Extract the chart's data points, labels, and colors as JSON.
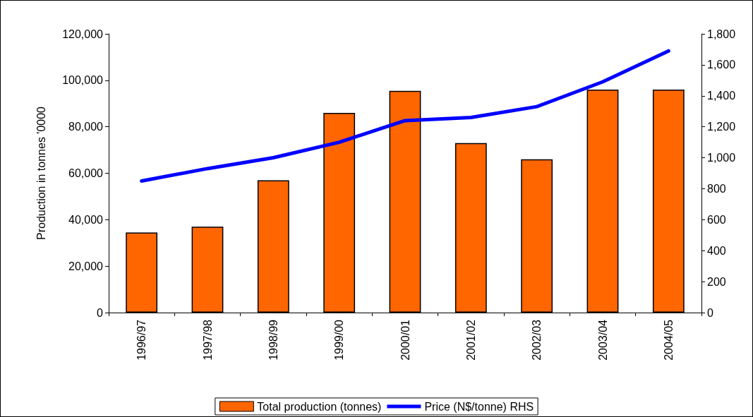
{
  "chart_data": {
    "type": "bar",
    "ylabel": "Production in tonnes '0000",
    "categories": [
      "1996/97",
      "1997/98",
      "1998/99",
      "1999/00",
      "2000/01",
      "2001/02",
      "2002/03",
      "2003/04",
      "2004/05"
    ],
    "series": [
      {
        "name": "Total production (tonnes)",
        "color": "#ff6600",
        "values": [
          34500,
          37000,
          57000,
          86000,
          95500,
          73000,
          66000,
          96000,
          96000
        ]
      },
      {
        "name": "Price (N$/tonne) RHS",
        "type": "line",
        "axis": "y2",
        "color": "#0000ff",
        "values": [
          850,
          930,
          1000,
          1100,
          1240,
          1260,
          1330,
          1490,
          1690
        ]
      }
    ],
    "ylim": [
      0,
      120000
    ],
    "yticks": [
      0,
      {
        "value": 20000,
        "label": "20,000"
      },
      {
        "value": 40000,
        "label": "40,000"
      },
      {
        "value": 60000,
        "label": "60,000"
      },
      {
        "value": 80000,
        "label": "80,000"
      },
      {
        "value": 100000,
        "label": "100,000"
      },
      {
        "value": 120000,
        "label": "120,000"
      }
    ],
    "y2lim": [
      0,
      1800
    ],
    "y2ticks": [
      0,
      200,
      400,
      600,
      800,
      {
        "value": 1000,
        "label": "1,000"
      },
      {
        "value": 1200,
        "label": "1,200"
      },
      {
        "value": 1400,
        "label": "1,400"
      },
      {
        "value": 1600,
        "label": "1,600"
      },
      {
        "value": 1800,
        "label": "1,800"
      }
    ],
    "grid": false,
    "legend": "bottom",
    "marker": "none",
    "line_style": "solid"
  }
}
